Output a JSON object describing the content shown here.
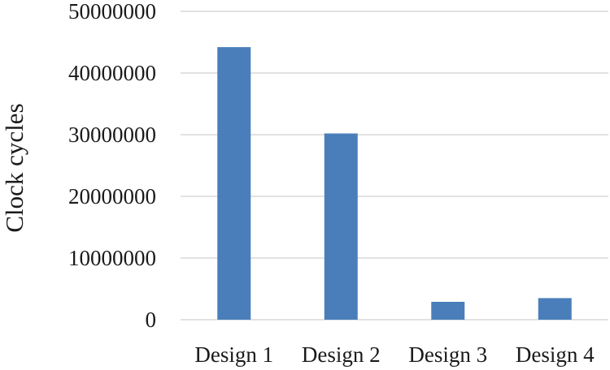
{
  "chart_data": {
    "type": "bar",
    "categories": [
      "Design 1",
      "Design 2",
      "Design 3",
      "Design 4"
    ],
    "values": [
      44200000,
      30200000,
      2900000,
      3500000
    ],
    "xlabel": "",
    "ylabel": "Clock cycles",
    "ylim": [
      0,
      50000000
    ],
    "yticks": [
      0,
      10000000,
      20000000,
      30000000,
      40000000,
      50000000
    ],
    "ytick_labels": [
      "0",
      "10000000",
      "20000000",
      "30000000",
      "40000000",
      "50000000"
    ],
    "grid": true,
    "legend": "none",
    "bar_color": "#4a7ebb",
    "grid_color": "#d9d9d9"
  }
}
